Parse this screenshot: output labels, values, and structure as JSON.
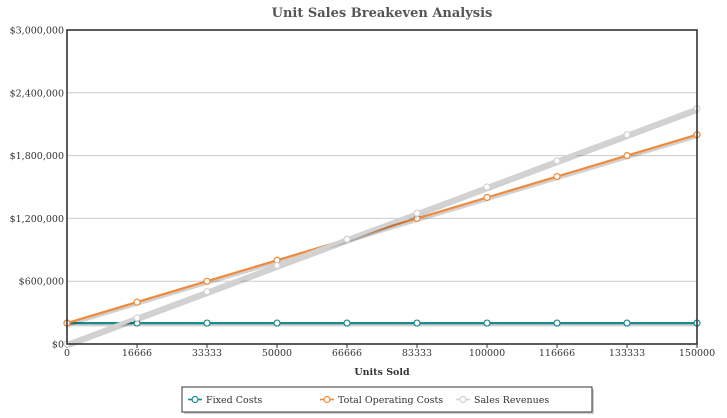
{
  "chart_data": {
    "type": "line",
    "title": "Unit Sales Breakeven Analysis",
    "xlabel": "Units Sold",
    "ylabel": "",
    "x": [
      0,
      16666,
      33333,
      50000,
      66666,
      83333,
      100000,
      116666,
      133333,
      150000
    ],
    "x_tick_labels": [
      "0",
      "16666",
      "33333",
      "50000",
      "66666",
      "83333",
      "100000",
      "116666",
      "133333",
      "150000"
    ],
    "y_tick_labels": [
      "$0",
      "$600,000",
      "$1,200,000",
      "$1,800,000",
      "$2,400,000",
      "$3,000,000"
    ],
    "xlim": [
      0,
      150000
    ],
    "ylim": [
      0,
      3000000
    ],
    "grid": "horizontal",
    "legend_position": "bottom",
    "series": [
      {
        "name": "Fixed Costs",
        "color": "#1a8a8a",
        "values": [
          200000,
          200000,
          200000,
          200000,
          200000,
          200000,
          200000,
          200000,
          200000,
          200000
        ]
      },
      {
        "name": "Total Operating Costs",
        "color": "#ef8a3c",
        "values": [
          200000,
          400000,
          600000,
          800000,
          1000000,
          1200000,
          1400000,
          1600000,
          1800000,
          2000000
        ]
      },
      {
        "name": "Sales Revenues",
        "color": "#d2d2d2",
        "values": [
          0,
          250000,
          500000,
          750000,
          1000000,
          1250000,
          1500000,
          1750000,
          2000000,
          2250000
        ]
      }
    ]
  }
}
